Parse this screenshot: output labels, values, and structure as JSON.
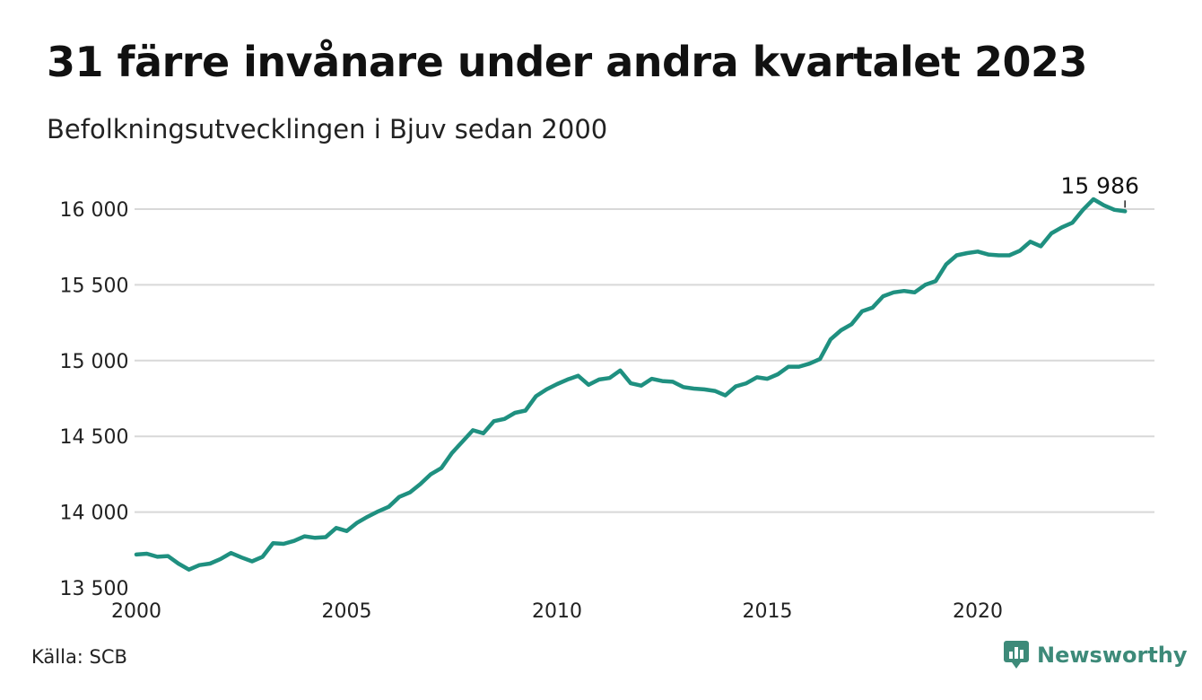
{
  "header": {
    "title": "31 färre invånare under andra kvartalet 2023",
    "subtitle": "Befolkningsutvecklingen i Bjuv sedan 2000"
  },
  "footer": {
    "source": "Källa: SCB",
    "brand": "Newsworthy",
    "brand_icon": "newsworthy-logo-icon"
  },
  "colors": {
    "line": "#1f9080",
    "grid": "#d8d8d8",
    "brand": "#3d8a79"
  },
  "chart_data": {
    "type": "line",
    "x_unit": "decimal year (quarterly)",
    "xlim": [
      2000,
      2024.2
    ],
    "ylim": [
      13500,
      16150
    ],
    "x_ticks": [
      2000,
      2005,
      2010,
      2015,
      2020
    ],
    "x_tick_labels": [
      "2000",
      "2005",
      "2010",
      "2015",
      "2020"
    ],
    "y_ticks": [
      13500,
      14000,
      14500,
      15000,
      15500,
      16000
    ],
    "y_tick_labels": [
      "13 500",
      "14 000",
      "14 500",
      "15 000",
      "15 500",
      "16 000"
    ],
    "grid": "horizontal",
    "annotation": {
      "label": "15 986",
      "x": 2023.5,
      "y": 15986
    },
    "series": [
      {
        "x": [
          2000.0,
          2000.25,
          2000.5,
          2000.75,
          2001.0,
          2001.25,
          2001.5,
          2001.75,
          2002.0,
          2002.25,
          2002.5,
          2002.75,
          2003.0,
          2003.25,
          2003.5,
          2003.75,
          2004.0,
          2004.25,
          2004.5,
          2004.75,
          2005.0,
          2005.25,
          2005.5,
          2005.75,
          2006.0,
          2006.25,
          2006.5,
          2006.75,
          2007.0,
          2007.25,
          2007.5,
          2007.75,
          2008.0,
          2008.25,
          2008.5,
          2008.75,
          2009.0,
          2009.25,
          2009.5,
          2009.75,
          2010.0,
          2010.25,
          2010.5,
          2010.75,
          2011.0,
          2011.25,
          2011.5,
          2011.75,
          2012.0,
          2012.25,
          2012.5,
          2012.75,
          2013.0,
          2013.25,
          2013.5,
          2013.75,
          2014.0,
          2014.25,
          2014.5,
          2014.75,
          2015.0,
          2015.25,
          2015.5,
          2015.75,
          2016.0,
          2016.25,
          2016.5,
          2016.75,
          2017.0,
          2017.25,
          2017.5,
          2017.75,
          2018.0,
          2018.25,
          2018.5,
          2018.75,
          2019.0,
          2019.25,
          2019.5,
          2019.75,
          2020.0,
          2020.25,
          2020.5,
          2020.75,
          2021.0,
          2021.25,
          2021.5,
          2021.75,
          2022.0,
          2022.25,
          2022.5,
          2022.75,
          2023.0,
          2023.25,
          2023.5
        ],
        "values": [
          13720,
          13725,
          13705,
          13710,
          13660,
          13620,
          13650,
          13660,
          13690,
          13730,
          13700,
          13675,
          13705,
          13795,
          13790,
          13810,
          13840,
          13830,
          13835,
          13895,
          13875,
          13930,
          13970,
          14005,
          14035,
          14100,
          14130,
          14185,
          14250,
          14290,
          14390,
          14465,
          14540,
          14520,
          14600,
          14615,
          14655,
          14670,
          14765,
          14810,
          14845,
          14875,
          14900,
          14840,
          14875,
          14885,
          14935,
          14850,
          14835,
          14880,
          14865,
          14860,
          14825,
          14815,
          14810,
          14800,
          14770,
          14830,
          14850,
          14890,
          14880,
          14910,
          14960,
          14960,
          14980,
          15010,
          15140,
          15200,
          15240,
          15325,
          15350,
          15425,
          15450,
          15460,
          15450,
          15500,
          15525,
          15635,
          15695,
          15710,
          15720,
          15700,
          15695,
          15695,
          15725,
          15785,
          15755,
          15840,
          15880,
          15910,
          15995,
          16065,
          16025,
          15995,
          15986
        ]
      }
    ]
  }
}
